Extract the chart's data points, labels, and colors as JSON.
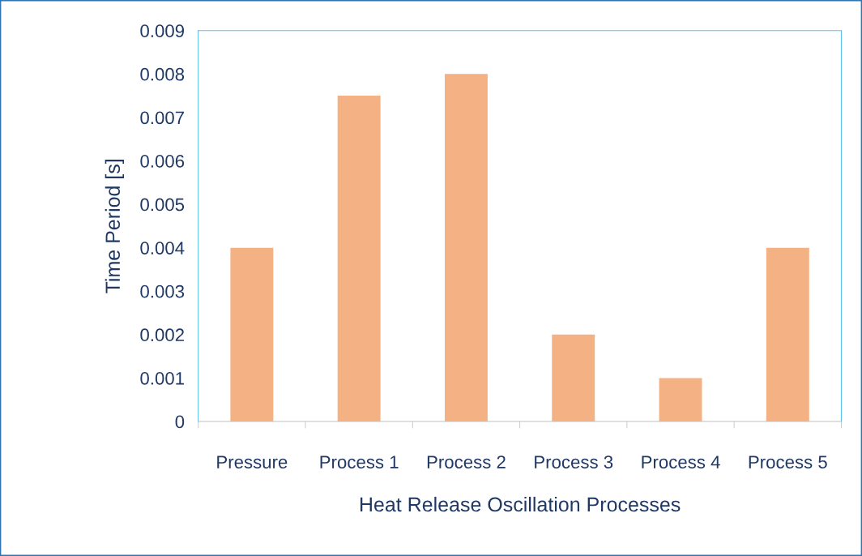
{
  "chart_data": {
    "type": "bar",
    "xlabel": "Heat Release Oscillation Processes",
    "ylabel": "Time Period [s]",
    "categories": [
      "Pressure",
      "Process 1",
      "Process 2",
      "Process 3",
      "Process 4",
      "Process 5"
    ],
    "values": [
      0.004,
      0.0075,
      0.008,
      0.002,
      0.001,
      0.004
    ],
    "color": "#f4b183",
    "ylim": [
      0,
      0.009
    ],
    "yticks": [
      0,
      0.001,
      0.002,
      0.003,
      0.004,
      0.005,
      0.006,
      0.007,
      0.008,
      0.009
    ],
    "grid": false,
    "legend": false
  }
}
